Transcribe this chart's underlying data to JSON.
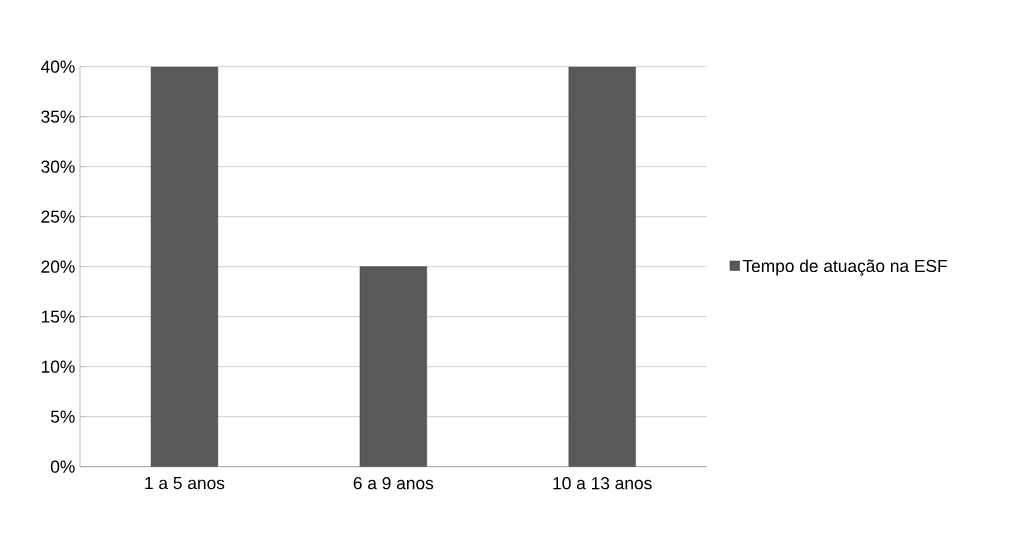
{
  "chart_data": {
    "type": "bar",
    "categories": [
      "1 a 5 anos",
      "6 a 9 anos",
      "10 a 13 anos"
    ],
    "series": [
      {
        "name": "Tempo de atuação na ESF",
        "color": "#595959",
        "values": [
          40,
          20,
          40
        ]
      }
    ],
    "ylim": [
      0,
      40
    ],
    "yticks": [
      {
        "value": 0,
        "label": "0%"
      },
      {
        "value": 5,
        "label": "5%"
      },
      {
        "value": 10,
        "label": "10%"
      },
      {
        "value": 15,
        "label": "15%"
      },
      {
        "value": 20,
        "label": "20%"
      },
      {
        "value": 25,
        "label": "25%"
      },
      {
        "value": 30,
        "label": "30%"
      },
      {
        "value": 35,
        "label": "35%"
      },
      {
        "value": 40,
        "label": "40%"
      }
    ],
    "grid": "y",
    "legend": "right"
  }
}
